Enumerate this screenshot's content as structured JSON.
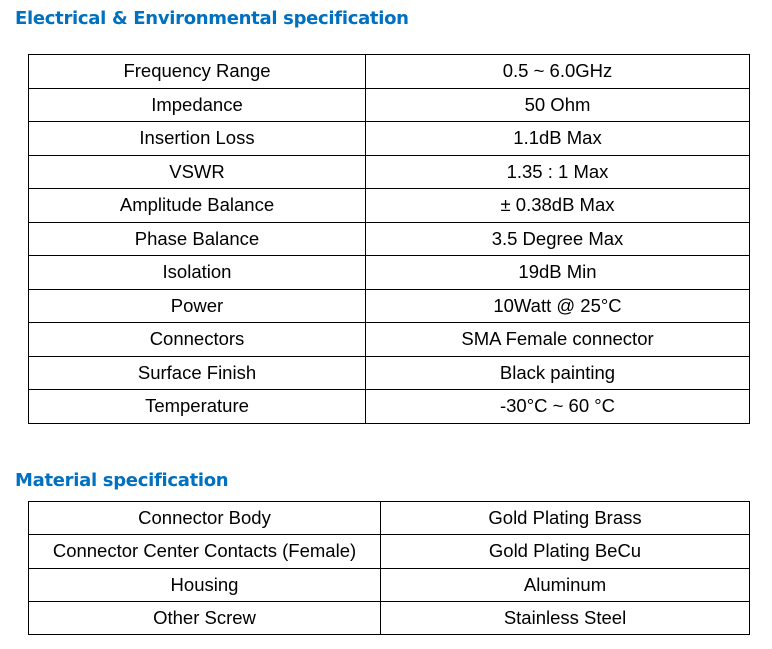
{
  "electrical": {
    "title": "Electrical & Environmental specification",
    "rows": [
      [
        "Frequency Range",
        "0.5 ~ 6.0GHz"
      ],
      [
        "Impedance",
        "50 Ohm"
      ],
      [
        "Insertion Loss",
        "1.1dB Max"
      ],
      [
        "VSWR",
        "1.35 : 1 Max"
      ],
      [
        "Amplitude Balance",
        "± 0.38dB Max"
      ],
      [
        "Phase Balance",
        "3.5 Degree Max"
      ],
      [
        "Isolation",
        "19dB Min"
      ],
      [
        "Power",
        "10Watt @ 25°C"
      ],
      [
        "Connectors",
        "SMA Female connector"
      ],
      [
        "Surface Finish",
        "Black painting"
      ],
      [
        "Temperature",
        "-30°C ~ 60 °C"
      ]
    ]
  },
  "material": {
    "title": "Material specification",
    "rows": [
      [
        "Connector Body",
        "Gold Plating Brass"
      ],
      [
        "Connector Center Contacts (Female)",
        "Gold Plating BeCu"
      ],
      [
        "Housing",
        "Aluminum"
      ],
      [
        "Other Screw",
        "Stainless Steel"
      ]
    ]
  }
}
